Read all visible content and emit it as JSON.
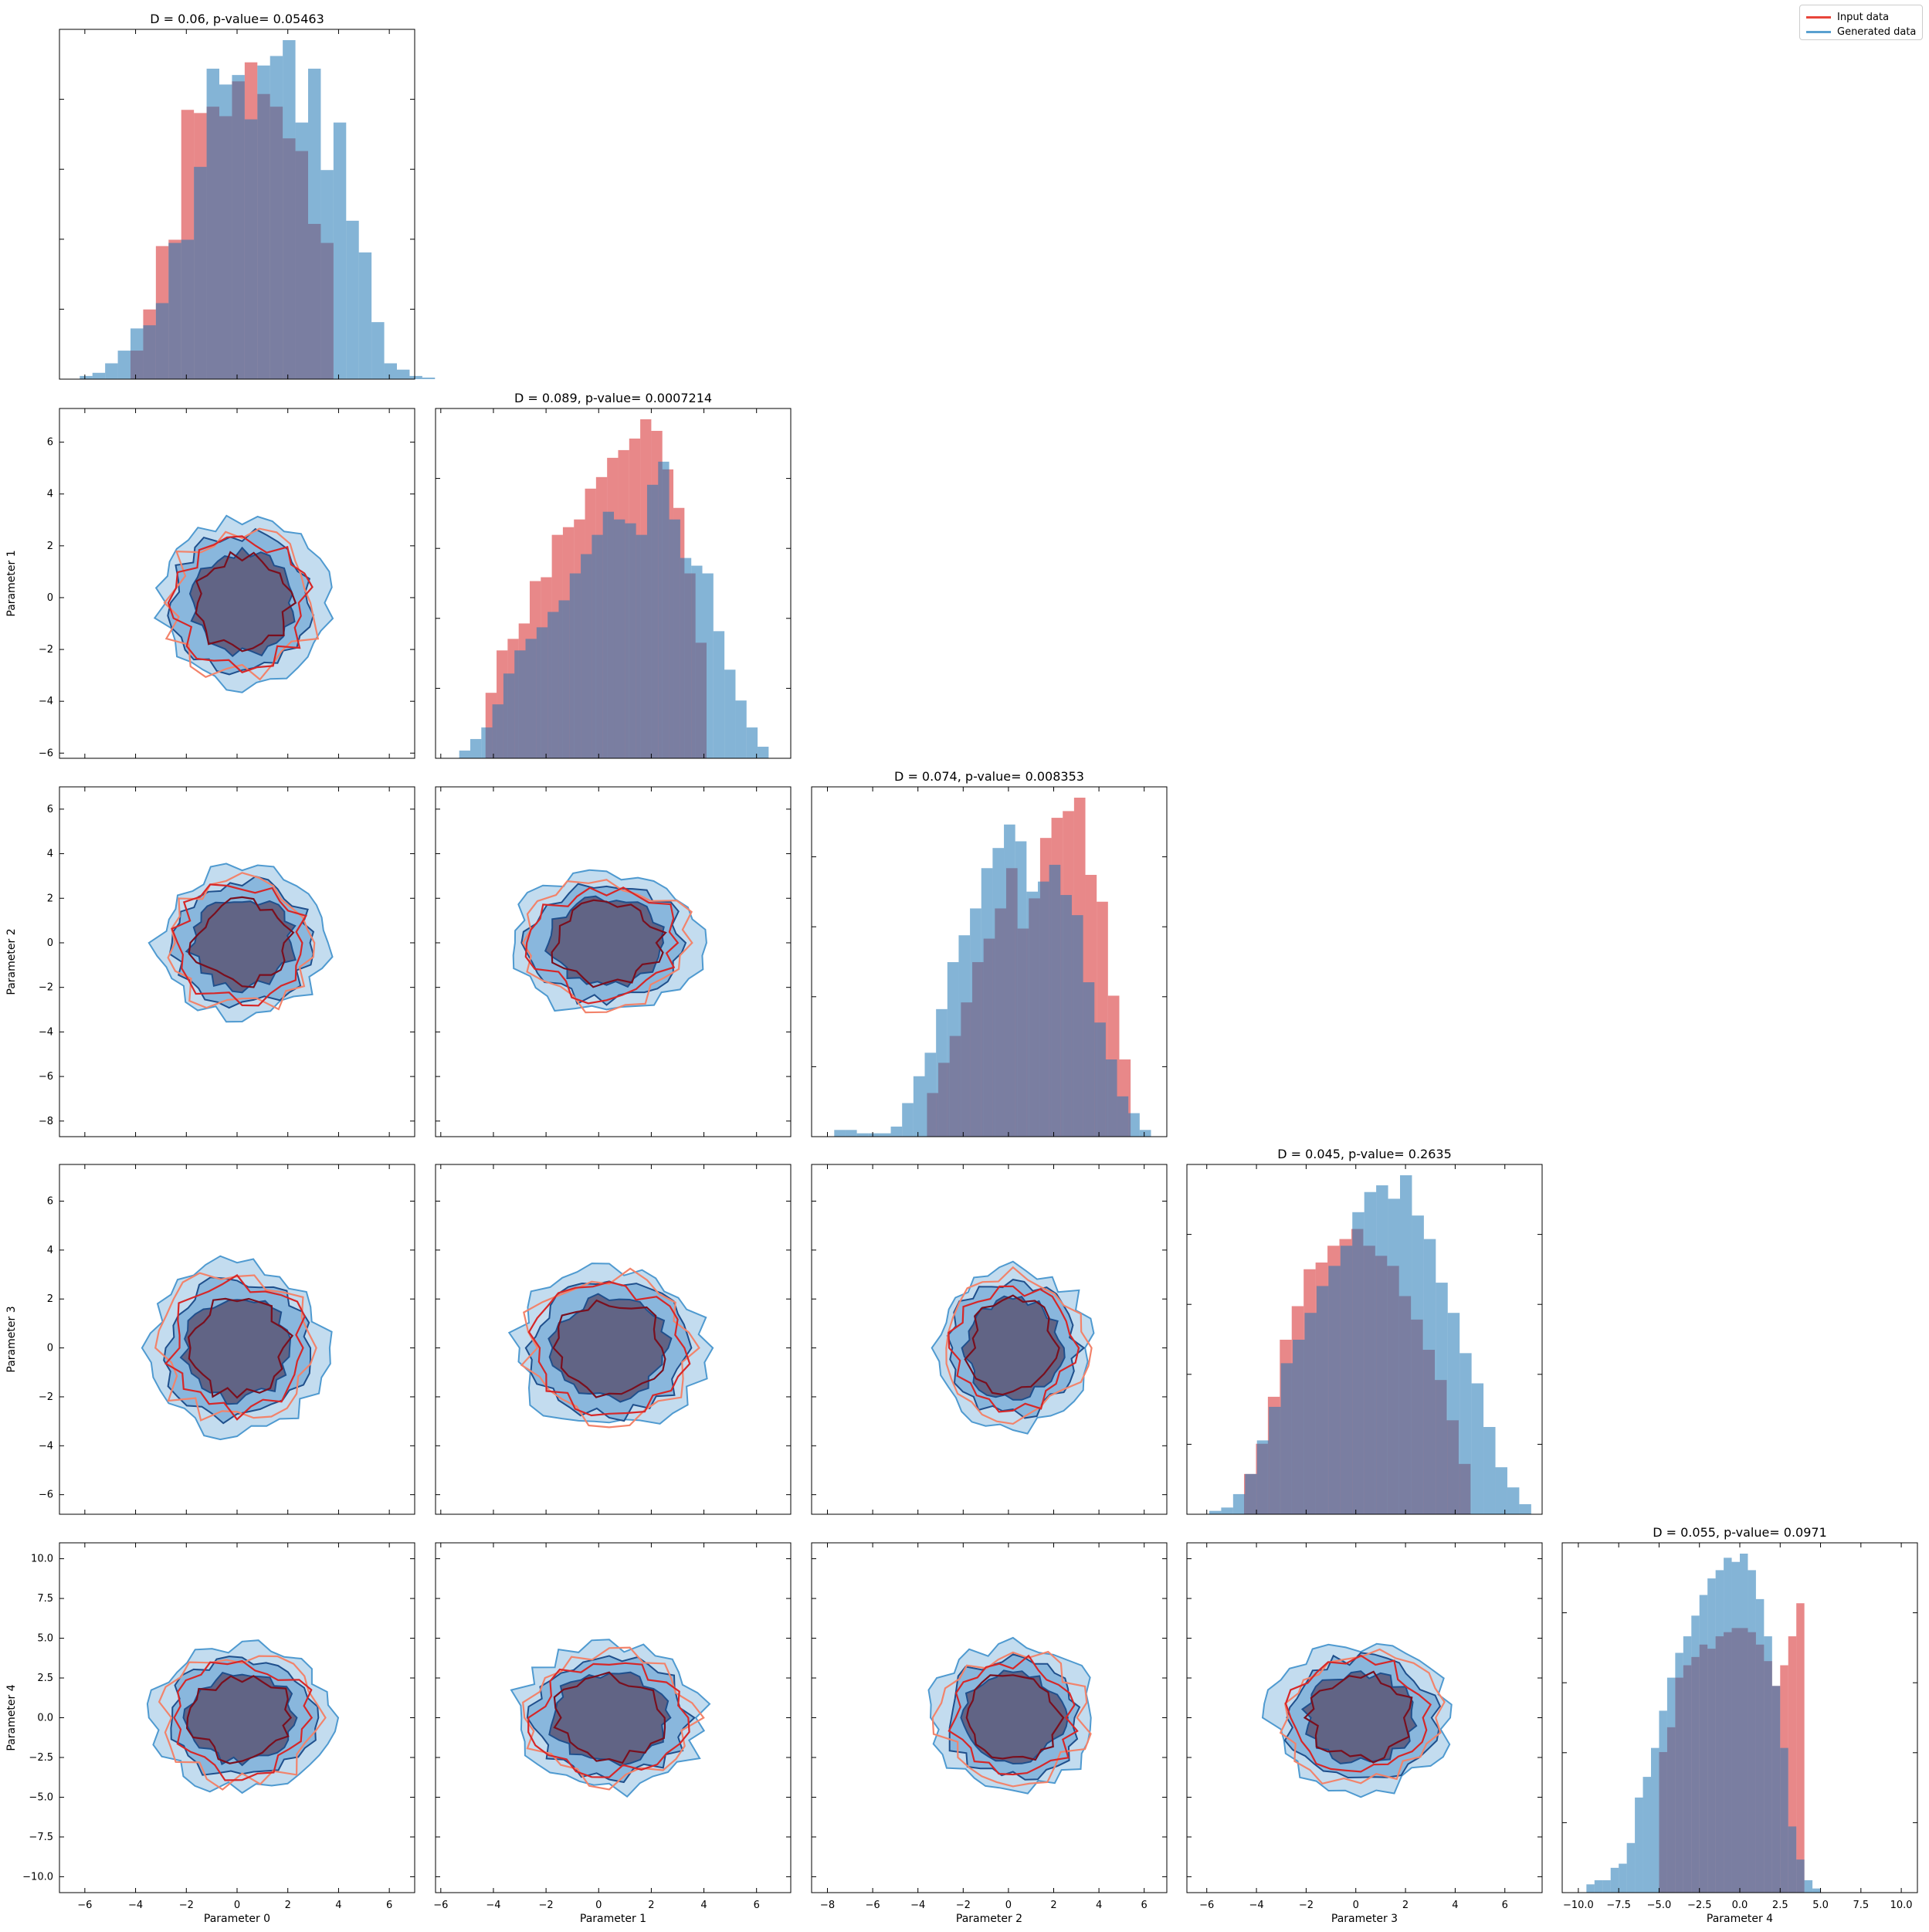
{
  "legend": {
    "position": "top-right",
    "entries": [
      {
        "label": "Input data",
        "color": "#e8453a"
      },
      {
        "label": "Generated data",
        "color": "#5aa0d0"
      }
    ]
  },
  "colors": {
    "input_hist": "#e8878a",
    "generated_hist": "#8db8d9",
    "overlap_hist": "#85859f",
    "input_contour_light": "#f2836b",
    "input_contour_dark": "#7a0f1e",
    "generated_fill_light": "#b8d6ec",
    "generated_fill_mid": "#7fb0d9",
    "generated_fill_dark": "#5a5675",
    "generated_line": "#4f9ad0",
    "generated_line_dark": "#1f4f8c"
  },
  "chart_data": {
    "type": "corner",
    "parameters": [
      "Parameter 0",
      "Parameter 1",
      "Parameter 2",
      "Parameter 3",
      "Parameter 4"
    ],
    "diagonal_titles": [
      "D = 0.06, p-value= 0.05463",
      "D = 0.089, p-value= 0.0007214",
      "D = 0.074, p-value= 0.008353",
      "D = 0.045, p-value= 0.2635",
      "D = 0.055, p-value= 0.0971"
    ],
    "ranges": [
      [
        -7,
        7
      ],
      [
        -6.2,
        7.3
      ],
      [
        -8.7,
        7
      ],
      [
        -6.8,
        7.5
      ],
      [
        -11,
        11
      ]
    ],
    "ticks": [
      [
        -6,
        -4,
        -2,
        0,
        2,
        4,
        6
      ],
      [
        -6,
        -4,
        -2,
        0,
        2,
        4,
        6
      ],
      [
        -8,
        -6,
        -4,
        -2,
        0,
        2,
        4,
        6
      ],
      [
        -6,
        -4,
        -2,
        0,
        2,
        4,
        6
      ],
      [
        -10.0,
        -7.5,
        -5.0,
        -2.5,
        0.0,
        2.5,
        5.0,
        7.5,
        10.0
      ]
    ],
    "tick_labels": [
      [
        "−6",
        "−4",
        "−2",
        "0",
        "2",
        "4",
        "6"
      ],
      [
        "−6",
        "−4",
        "−2",
        "0",
        "2",
        "4",
        "6"
      ],
      [
        "−8",
        "−6",
        "−4",
        "−2",
        "0",
        "2",
        "4",
        "6"
      ],
      [
        "−6",
        "−4",
        "−2",
        "0",
        "2",
        "4",
        "6"
      ],
      [
        "−10.0",
        "−7.5",
        "−5.0",
        "−2.5",
        "0.0",
        "2.5",
        "5.0",
        "7.5",
        "10.0"
      ]
    ],
    "histograms": [
      {
        "input": {
          "start": -4.2,
          "width": 0.5,
          "heights": [
            9,
            22,
            42,
            44,
            85,
            84,
            86,
            83,
            94,
            100,
            90,
            86,
            76,
            72,
            49,
            43
          ]
        },
        "generated": {
          "start": -6.2,
          "width": 0.5,
          "heights": [
            1,
            2,
            5,
            9,
            16,
            17,
            24,
            43,
            44,
            67,
            98,
            93,
            96,
            82,
            99,
            102,
            107,
            81,
            98,
            66,
            81,
            50,
            40,
            18,
            5,
            3,
            1,
            0.5
          ]
        }
      },
      {
        "input": {
          "start": -4.3,
          "width": 0.42,
          "heights": [
            17,
            28,
            31,
            35,
            46,
            47,
            58,
            60,
            62,
            70,
            73,
            78,
            80,
            83,
            88,
            85,
            75,
            65,
            48,
            30
          ]
        },
        "generated": {
          "start": -5.3,
          "width": 0.42,
          "heights": [
            2,
            5,
            8,
            14,
            22,
            28,
            31,
            34,
            38,
            41,
            48,
            53,
            58,
            64,
            62,
            61,
            58,
            71,
            77,
            62,
            52,
            50,
            48,
            33,
            23,
            15,
            8,
            3
          ]
        }
      },
      {
        "input": {
          "start": -3.6,
          "width": 0.5,
          "heights": [
            13,
            22,
            30,
            40,
            52,
            59,
            68,
            80,
            62,
            71,
            89,
            95,
            97,
            101,
            78,
            70,
            42,
            23
          ]
        },
        "generated": {
          "start": -7.7,
          "width": 0.5,
          "heights": [
            2,
            2,
            1,
            1,
            1,
            3,
            10,
            18,
            25,
            38,
            52,
            60,
            68,
            80,
            86,
            93,
            88,
            73,
            76,
            81,
            72,
            66,
            46,
            34,
            23,
            12,
            7,
            2
          ]
        }
      },
      {
        "input": {
          "start": -4.5,
          "width": 0.48,
          "heights": [
            12,
            21,
            35,
            52,
            62,
            73,
            75,
            80,
            82,
            85,
            80,
            77,
            74,
            65,
            58,
            49,
            40,
            28,
            15
          ]
        },
        "generated": {
          "start": -5.9,
          "width": 0.48,
          "heights": [
            1,
            2,
            6,
            12,
            22,
            32,
            45,
            52,
            60,
            68,
            74,
            80,
            90,
            96,
            98,
            94,
            101,
            89,
            82,
            69,
            60,
            48,
            39,
            26,
            14,
            8,
            3
          ]
        }
      },
      {
        "input": {
          "start": -5.0,
          "width": 0.5,
          "heights": [
            34,
            40,
            52,
            55,
            57,
            60,
            59,
            62,
            63,
            64,
            64,
            63,
            60,
            56,
            50,
            55,
            62,
            70
          ]
        },
        "generated": {
          "start": -9.5,
          "width": 0.5,
          "heights": [
            2,
            3,
            3,
            6,
            7,
            12,
            23,
            28,
            35,
            44,
            52,
            58,
            62,
            67,
            72,
            76,
            78,
            81,
            80,
            82,
            78,
            71,
            62,
            50,
            35,
            16,
            8,
            3,
            1
          ]
        }
      }
    ],
    "contour_pairs": [
      {
        "x": 0,
        "y": 1,
        "center": [
          0.2,
          -0.2
        ],
        "spread": [
          2.6,
          2.5
        ]
      },
      {
        "x": 0,
        "y": 2,
        "center": [
          0.2,
          0.0
        ],
        "spread": [
          2.6,
          2.6
        ]
      },
      {
        "x": 1,
        "y": 2,
        "center": [
          0.3,
          0.0
        ],
        "spread": [
          2.8,
          2.5
        ]
      },
      {
        "x": 0,
        "y": 3,
        "center": [
          0.0,
          0.0
        ],
        "spread": [
          2.7,
          2.7
        ]
      },
      {
        "x": 1,
        "y": 3,
        "center": [
          0.4,
          0.0
        ],
        "spread": [
          2.8,
          2.6
        ]
      },
      {
        "x": 2,
        "y": 3,
        "center": [
          0.2,
          0.0
        ],
        "spread": [
          2.7,
          2.6
        ]
      },
      {
        "x": 0,
        "y": 4,
        "center": [
          0.2,
          0.0
        ],
        "spread": [
          2.7,
          3.6
        ]
      },
      {
        "x": 1,
        "y": 4,
        "center": [
          0.4,
          0.0
        ],
        "spread": [
          2.8,
          3.6
        ]
      },
      {
        "x": 2,
        "y": 4,
        "center": [
          0.2,
          0.0
        ],
        "spread": [
          2.8,
          3.6
        ]
      },
      {
        "x": 3,
        "y": 4,
        "center": [
          0.2,
          0.0
        ],
        "spread": [
          2.8,
          3.6
        ]
      }
    ]
  }
}
